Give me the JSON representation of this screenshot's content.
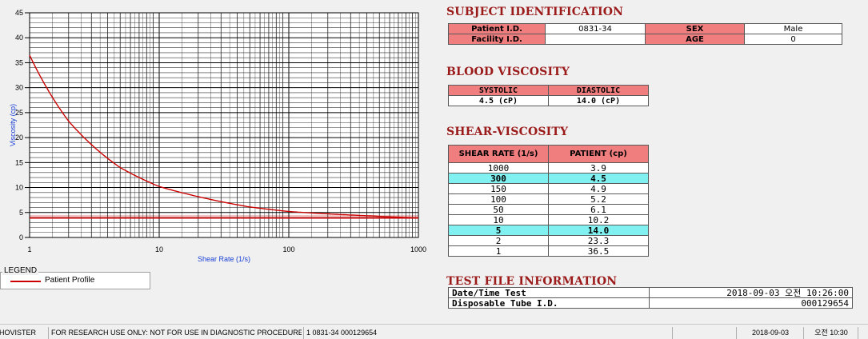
{
  "chart_data": {
    "type": "line",
    "xlabel": "Shear Rate (1/s)",
    "ylabel": "Viscosity (cp)",
    "xscale": "log",
    "xlim": [
      1,
      1000
    ],
    "ylim": [
      0,
      45
    ],
    "x_ticks": [
      "1",
      "10",
      "100",
      "1000"
    ],
    "y_ticks": [
      "0",
      "5",
      "10",
      "15",
      "20",
      "25",
      "30",
      "35",
      "40",
      "45"
    ],
    "grid": true,
    "series": [
      {
        "name": "Patient Profile",
        "color": "#cc0000",
        "x": [
          1,
          2,
          5,
          10,
          50,
          100,
          150,
          300,
          1000
        ],
        "y": [
          36.5,
          23.3,
          14.0,
          10.2,
          6.1,
          5.2,
          4.9,
          4.5,
          3.9
        ]
      }
    ],
    "reference_band": {
      "y_low": 3.9,
      "y_high": 4.5,
      "color": "#f4c4c4"
    }
  },
  "legend": {
    "title": "LEGEND",
    "label": "Patient Profile"
  },
  "subject": {
    "title": "SUBJECT IDENTIFICATION",
    "patient_id_label": "Patient I.D.",
    "patient_id": "0831-34",
    "sex_label": "SEX",
    "sex": "Male",
    "facility_id_label": "Facility I.D.",
    "facility_id": "",
    "age_label": "AGE",
    "age": "0"
  },
  "blood": {
    "title": "BLOOD VISCOSITY",
    "systolic_label": "SYSTOLIC",
    "diastolic_label": "DIASTOLIC",
    "systolic": "4.5 (cP)",
    "diastolic": "14.0 (cP)"
  },
  "shear": {
    "title": "SHEAR-VISCOSITY",
    "col_rate": "SHEAR RATE (1/s)",
    "col_patient": "PATIENT (cp)",
    "rows": [
      {
        "rate": "1000",
        "patient": "3.9",
        "highlight": false
      },
      {
        "rate": "300",
        "patient": "4.5",
        "highlight": true
      },
      {
        "rate": "150",
        "patient": "4.9",
        "highlight": false
      },
      {
        "rate": "100",
        "patient": "5.2",
        "highlight": false
      },
      {
        "rate": "50",
        "patient": "6.1",
        "highlight": false
      },
      {
        "rate": "10",
        "patient": "10.2",
        "highlight": false
      },
      {
        "rate": "5",
        "patient": "14.0",
        "highlight": true
      },
      {
        "rate": "2",
        "patient": "23.3",
        "highlight": false
      },
      {
        "rate": "1",
        "patient": "36.5",
        "highlight": false
      }
    ]
  },
  "test_file": {
    "title": "TEST FILE INFORMATION",
    "datetime_label": "Date/Time Test",
    "datetime": "2018-09-03  오전 10:26:00",
    "tube_label": "Disposable Tube I.D.",
    "tube": "000129654"
  },
  "status": {
    "app": "HOVISTER",
    "notice": "FOR RESEARCH USE ONLY: NOT FOR USE IN DIAGNOSTIC PROCEDURES",
    "record": "1  0831-34  000129654",
    "date": "2018-09-03",
    "time": "오전 10:30"
  }
}
